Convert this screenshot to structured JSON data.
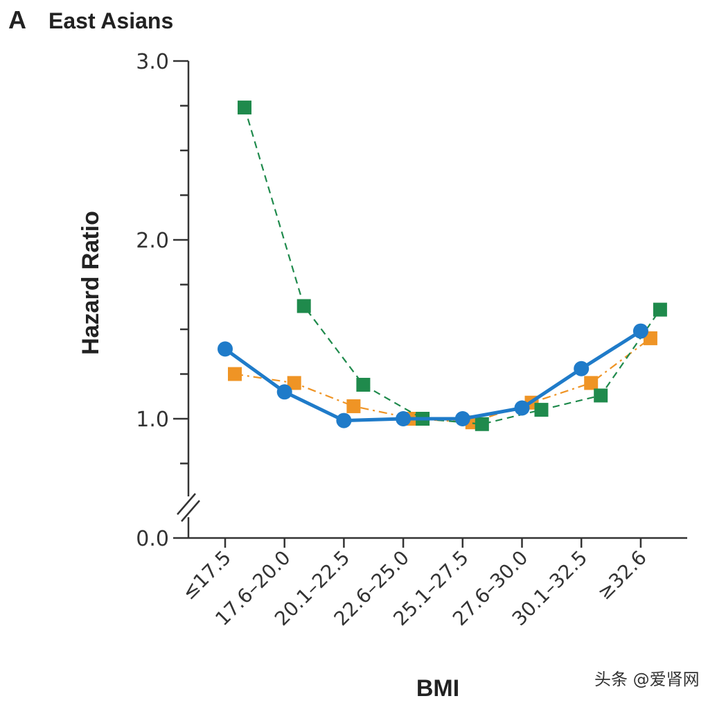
{
  "panel": {
    "letter": "A",
    "title": "East Asians"
  },
  "watermark": "头条 @爱肾网",
  "chart_data": {
    "type": "line",
    "title": "East Asians",
    "xlabel": "BMI",
    "ylabel": "Hazard Ratio",
    "categories": [
      "≤17.5",
      "17.6–20.0",
      "20.1–22.5",
      "22.6–25.0",
      "25.1–27.5",
      "27.6–30.0",
      "30.1–32.5",
      "≥32.6"
    ],
    "y_ticks": [
      {
        "value": 0.0,
        "label": "0.0"
      },
      {
        "value": 1.0,
        "label": "1.0"
      },
      {
        "value": 2.0,
        "label": "2.0"
      },
      {
        "value": 3.0,
        "label": "3.0"
      }
    ],
    "y_minor_ticks": [
      0.75,
      1.25,
      1.5,
      1.75,
      2.25,
      2.5,
      2.75
    ],
    "ylim": [
      0.0,
      3.0
    ],
    "y_axis_break": true,
    "series": [
      {
        "name": "blue",
        "color": "#1f7bc9",
        "marker": "circle",
        "line": "solid",
        "values": [
          1.39,
          1.15,
          0.99,
          1.0,
          1.0,
          1.06,
          1.28,
          1.49
        ]
      },
      {
        "name": "orange",
        "color": "#ef9425",
        "marker": "square",
        "line": "dashdot",
        "values": [
          1.25,
          1.2,
          1.07,
          1.0,
          0.98,
          1.09,
          1.2,
          1.45
        ]
      },
      {
        "name": "green",
        "color": "#1f8a4c",
        "marker": "square",
        "line": "dashed",
        "values": [
          2.74,
          1.63,
          1.19,
          1.0,
          0.97,
          1.05,
          1.13,
          1.61
        ]
      }
    ]
  }
}
